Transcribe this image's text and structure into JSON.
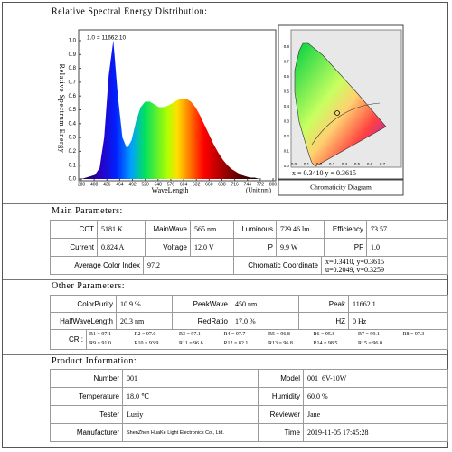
{
  "header": {
    "title": "Relative Spectral Energy Distribution:"
  },
  "chart_data": {
    "type": "area",
    "y_label": "Relative Spectrum Energy",
    "x_label": "WaveLength",
    "x_unit": "(Unit:nm)",
    "annotation": "1.0 = 11662.10",
    "x": [
      380,
      390,
      400,
      410,
      420,
      430,
      440,
      450,
      460,
      470,
      480,
      490,
      500,
      510,
      520,
      530,
      540,
      550,
      560,
      570,
      580,
      590,
      600,
      610,
      620,
      630,
      640,
      650,
      660,
      670,
      680,
      690,
      700,
      710,
      720,
      730,
      740,
      750,
      760,
      770,
      780
    ],
    "values": [
      0,
      0.01,
      0.02,
      0.03,
      0.08,
      0.3,
      0.75,
      1.0,
      0.6,
      0.3,
      0.22,
      0.28,
      0.42,
      0.52,
      0.56,
      0.56,
      0.54,
      0.52,
      0.52,
      0.53,
      0.55,
      0.57,
      0.58,
      0.58,
      0.56,
      0.52,
      0.46,
      0.39,
      0.32,
      0.25,
      0.19,
      0.14,
      0.1,
      0.07,
      0.05,
      0.03,
      0.02,
      0.01,
      0.01,
      0,
      0
    ],
    "xlim": [
      380,
      800
    ],
    "xticks": [
      380,
      408,
      436,
      464,
      492,
      520,
      548,
      576,
      604,
      632,
      660,
      688,
      716,
      744,
      772,
      800
    ],
    "ylim": [
      0,
      1
    ],
    "yticks": [
      {
        "value": 1,
        "label": "1.0"
      },
      0.9,
      0.8,
      0.7,
      0.6,
      0.5,
      0.4,
      0.3,
      0.2,
      0.1,
      {
        "value": 0,
        "label": "0.0"
      }
    ]
  },
  "chromaticity": {
    "coordinates": "x = 0.3410  y = 0.3615",
    "caption": "Chromaticity Diagram",
    "y_labels": [
      "0.8",
      "0.7",
      "0.6",
      "0.5",
      "0.4",
      "0.3",
      "0.2",
      "0.1",
      "0.0"
    ],
    "x_labels": [
      "0.0",
      "0.1",
      "0.2",
      "0.3",
      "0.4",
      "0.5",
      "0.6",
      "0.7"
    ]
  },
  "main_parameters": {
    "heading": "Main Parameters:",
    "rows": [
      [
        "CCT",
        "5181 K",
        "MainWave",
        "565 nm",
        "Luminous",
        "729.46 lm",
        "Efficiency",
        "73.57"
      ],
      [
        "Current",
        "0.824 A",
        "Voltage",
        "12.0 V",
        "P",
        "9.9 W",
        "PF",
        "1.0"
      ],
      [
        "Average Color Index",
        "97.2",
        "Chromatic Coordinate",
        [
          "x=0.3410, y=0.3615",
          "u=0.2049, v=0.3259"
        ]
      ]
    ]
  },
  "other_parameters": {
    "heading": "Other Parameters:",
    "rows": [
      [
        "ColorPurity",
        "10.9 %",
        "PeakWave",
        "450 nm",
        "Peak",
        "11662.1"
      ],
      [
        "HalfWaveLength",
        "20.3 nm",
        "RedRatio",
        "17.0 %",
        "HZ",
        "0 Hz"
      ]
    ],
    "cri": {
      "label": "CRI:",
      "values": [
        "R1 = 97.1",
        "R2 = 97.0",
        "R3 = 97.1",
        "R4 = 97.7",
        "R5 = 96.8",
        "R6 = 95.8",
        "R7 = 99.1",
        "R8 = 97.3",
        "R9 = 91.0",
        "R10 = 93.9",
        "R11 = 96.6",
        "R12 = 82.1",
        "R13 = 96.8",
        "R14 = 98.5",
        "R15 = 96.0"
      ]
    }
  },
  "product_information": {
    "heading": "Product Information:",
    "rows": [
      [
        "Number",
        "001",
        "Model",
        "001_6V-10W"
      ],
      [
        "Temperature",
        "18.0 ℃",
        "Humidity",
        "60.0 %"
      ],
      [
        "Tester",
        "Lusiy",
        "Reviewer",
        "Jane"
      ],
      [
        "Manufacturer",
        "ShenZhen HuaKe Light Electronics Co., Ltd.",
        "Time",
        "2019-11-05 17:45:28"
      ]
    ]
  }
}
